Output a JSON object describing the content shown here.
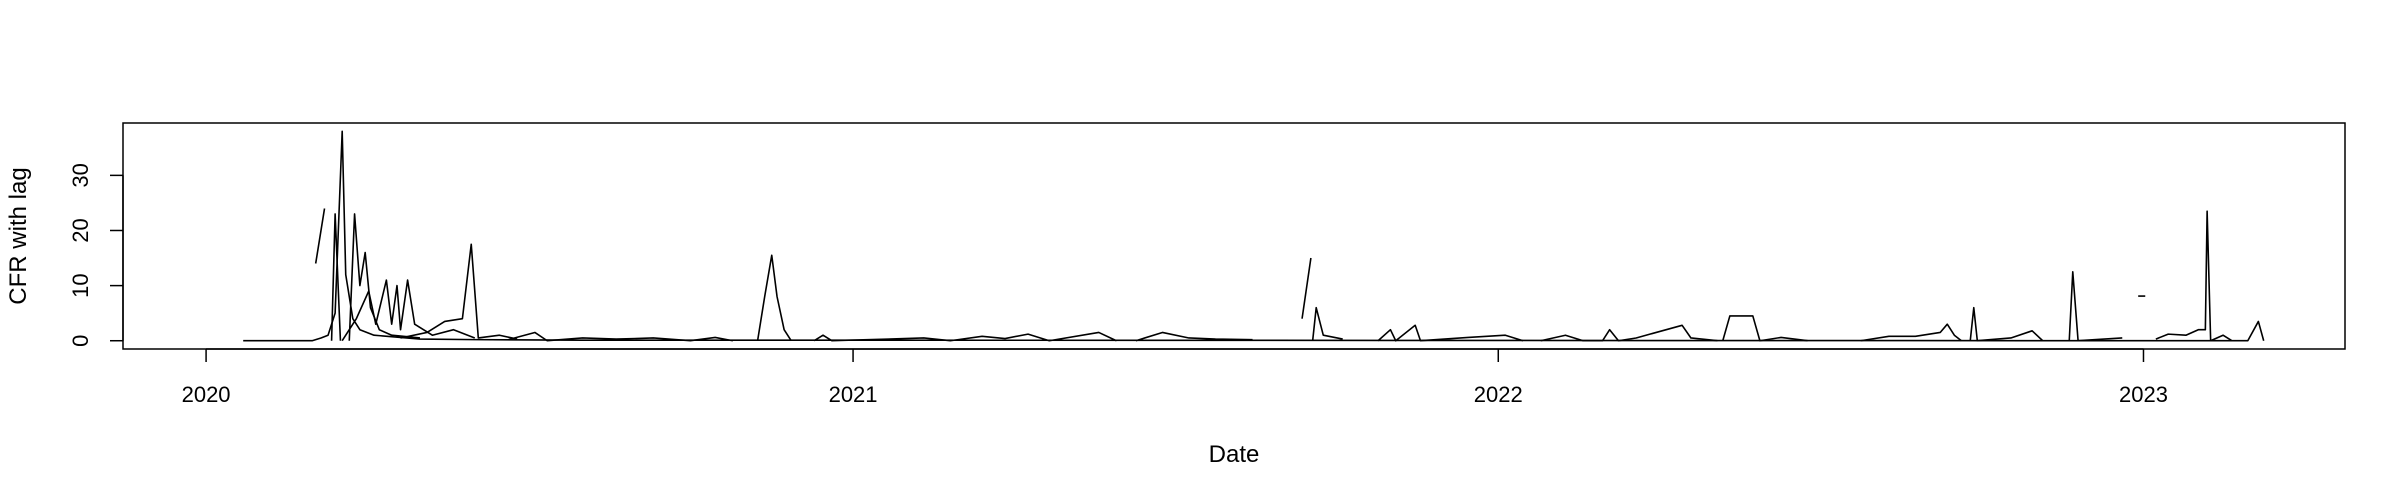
{
  "chart_data": {
    "type": "line",
    "title": "",
    "xlabel": "Date",
    "ylabel": "CFR with lag",
    "x_axis": {
      "scale": "date",
      "range": [
        "2019-11-15",
        "2023-04-25"
      ],
      "ticks": [
        {
          "value": "2020-01-01",
          "label": "2020"
        },
        {
          "value": "2021-01-01",
          "label": "2021"
        },
        {
          "value": "2022-01-01",
          "label": "2022"
        },
        {
          "value": "2023-01-01",
          "label": "2023"
        }
      ]
    },
    "y_axis": {
      "range": [
        -1.5,
        39.5
      ],
      "ticks": [
        {
          "value": 0,
          "label": "0"
        },
        {
          "value": 10,
          "label": "10"
        },
        {
          "value": 20,
          "label": "20"
        },
        {
          "value": 30,
          "label": "30"
        }
      ]
    },
    "grid": false,
    "legend": "none",
    "line_color": "#000000",
    "series": [
      {
        "points": [
          [
            "2020-01-22",
            0
          ],
          [
            "2020-03-01",
            0
          ],
          [
            "2020-03-06",
            0.5
          ],
          [
            "2020-03-10",
            1
          ],
          [
            "2020-03-14",
            5
          ],
          [
            "2020-03-18",
            38
          ],
          [
            "2020-03-20",
            12
          ],
          [
            "2020-03-24",
            4
          ],
          [
            "2020-03-28",
            2
          ],
          [
            "2020-04-05",
            1
          ],
          [
            "2020-04-20",
            0.6
          ],
          [
            "2020-05-01",
            0.3
          ],
          [
            "2020-06-01",
            0.2
          ],
          [
            "2020-08-01",
            0.1
          ],
          [
            "2021-01-01",
            0.1
          ],
          [
            "2022-01-01",
            0.05
          ],
          [
            "2023-02-20",
            0
          ]
        ]
      },
      {
        "points": [
          [
            "2020-03-03",
            14
          ],
          [
            "2020-03-08",
            24
          ]
        ]
      },
      {
        "points": [
          [
            "2020-03-12",
            0
          ],
          [
            "2020-03-14",
            23
          ],
          [
            "2020-03-17",
            0
          ]
        ]
      },
      {
        "points": [
          [
            "2020-03-22",
            0
          ],
          [
            "2020-03-25",
            23
          ],
          [
            "2020-03-28",
            10
          ],
          [
            "2020-03-31",
            16
          ],
          [
            "2020-04-03",
            6
          ],
          [
            "2020-04-08",
            2
          ],
          [
            "2020-04-15",
            1
          ],
          [
            "2020-05-01",
            0.5
          ]
        ]
      },
      {
        "points": [
          [
            "2020-03-18",
            0
          ],
          [
            "2020-03-26",
            4
          ],
          [
            "2020-04-02",
            9
          ],
          [
            "2020-04-06",
            3
          ],
          [
            "2020-04-12",
            11
          ],
          [
            "2020-04-15",
            3
          ],
          [
            "2020-04-18",
            10
          ],
          [
            "2020-04-20",
            2
          ],
          [
            "2020-04-24",
            11
          ],
          [
            "2020-04-28",
            3
          ],
          [
            "2020-05-08",
            1
          ],
          [
            "2020-05-20",
            2
          ],
          [
            "2020-06-01",
            0.5
          ]
        ]
      },
      {
        "points": [
          [
            "2020-04-20",
            0.5
          ],
          [
            "2020-05-05",
            1.5
          ],
          [
            "2020-05-15",
            3.5
          ],
          [
            "2020-05-25",
            4
          ],
          [
            "2020-05-30",
            17.5
          ],
          [
            "2020-06-03",
            0.5
          ],
          [
            "2020-06-15",
            1
          ],
          [
            "2020-06-25",
            0.3
          ]
        ]
      },
      {
        "points": [
          [
            "2020-06-20",
            0.2
          ],
          [
            "2020-07-05",
            1.5
          ],
          [
            "2020-07-12",
            0
          ],
          [
            "2020-08-01",
            0.5
          ],
          [
            "2020-08-20",
            0.3
          ],
          [
            "2020-09-10",
            0.5
          ],
          [
            "2020-10-01",
            0
          ],
          [
            "2020-10-15",
            0.6
          ],
          [
            "2020-10-25",
            0
          ]
        ]
      },
      {
        "points": [
          [
            "2020-11-08",
            0
          ],
          [
            "2020-11-12",
            8
          ],
          [
            "2020-11-16",
            15.5
          ],
          [
            "2020-11-19",
            8
          ],
          [
            "2020-11-23",
            2
          ],
          [
            "2020-11-27",
            0
          ]
        ]
      },
      {
        "points": [
          [
            "2020-12-10",
            0
          ],
          [
            "2020-12-15",
            1
          ],
          [
            "2020-12-20",
            0
          ],
          [
            "2021-02-10",
            0.5
          ],
          [
            "2021-02-25",
            0
          ],
          [
            "2021-03-15",
            0.8
          ],
          [
            "2021-03-28",
            0.4
          ],
          [
            "2021-04-10",
            1.2
          ],
          [
            "2021-04-22",
            0
          ],
          [
            "2021-05-20",
            1.5
          ],
          [
            "2021-05-30",
            0
          ]
        ]
      },
      {
        "points": [
          [
            "2021-06-10",
            0
          ],
          [
            "2021-06-25",
            1.5
          ],
          [
            "2021-07-10",
            0.5
          ],
          [
            "2021-07-25",
            0.3
          ],
          [
            "2021-08-15",
            0.2
          ]
        ]
      },
      {
        "points": [
          [
            "2021-09-12",
            4
          ],
          [
            "2021-09-17",
            15
          ]
        ]
      },
      {
        "points": [
          [
            "2021-09-18",
            0
          ],
          [
            "2021-09-20",
            6
          ],
          [
            "2021-09-24",
            1
          ],
          [
            "2021-10-05",
            0.3
          ]
        ]
      },
      {
        "points": [
          [
            "2021-10-25",
            0
          ],
          [
            "2021-11-01",
            2
          ],
          [
            "2021-11-04",
            0
          ],
          [
            "2021-11-15",
            2.8
          ],
          [
            "2021-11-18",
            0
          ],
          [
            "2021-12-15",
            0.6
          ],
          [
            "2022-01-05",
            1
          ],
          [
            "2022-01-15",
            0
          ]
        ]
      },
      {
        "points": [
          [
            "2022-01-25",
            0
          ],
          [
            "2022-02-08",
            1
          ],
          [
            "2022-02-18",
            0
          ],
          [
            "2022-03-01",
            0
          ],
          [
            "2022-03-05",
            2
          ],
          [
            "2022-03-10",
            0
          ],
          [
            "2022-03-20",
            0.5
          ],
          [
            "2022-04-15",
            2.8
          ],
          [
            "2022-04-20",
            0.5
          ],
          [
            "2022-05-05",
            0
          ]
        ]
      },
      {
        "points": [
          [
            "2022-05-08",
            0
          ],
          [
            "2022-05-12",
            4.5
          ],
          [
            "2022-05-25",
            4.5
          ],
          [
            "2022-05-29",
            0
          ],
          [
            "2022-06-10",
            0.6
          ],
          [
            "2022-06-25",
            0
          ]
        ]
      },
      {
        "points": [
          [
            "2022-07-25",
            0
          ],
          [
            "2022-08-10",
            0.8
          ],
          [
            "2022-08-25",
            0.8
          ],
          [
            "2022-09-08",
            1.5
          ],
          [
            "2022-09-12",
            3
          ],
          [
            "2022-09-16",
            1
          ],
          [
            "2022-09-20",
            0
          ]
        ]
      },
      {
        "points": [
          [
            "2022-09-25",
            0
          ],
          [
            "2022-09-27",
            6
          ],
          [
            "2022-09-29",
            0
          ],
          [
            "2022-10-18",
            0.5
          ],
          [
            "2022-10-30",
            1.8
          ],
          [
            "2022-11-05",
            0
          ]
        ]
      },
      {
        "points": [
          [
            "2022-11-20",
            0
          ],
          [
            "2022-11-22",
            12.5
          ],
          [
            "2022-11-25",
            0
          ],
          [
            "2022-12-20",
            0.5
          ]
        ]
      },
      {
        "points": [
          [
            "2022-12-29",
            8.1
          ],
          [
            "2023-01-02",
            8.1
          ]
        ]
      },
      {
        "points": [
          [
            "2023-01-08",
            0.3
          ],
          [
            "2023-01-15",
            1.2
          ],
          [
            "2023-01-25",
            1
          ],
          [
            "2023-02-01",
            2
          ],
          [
            "2023-02-05",
            2
          ],
          [
            "2023-02-06",
            23.5
          ],
          [
            "2023-02-08",
            0
          ],
          [
            "2023-02-15",
            1
          ],
          [
            "2023-02-20",
            0
          ],
          [
            "2023-03-01",
            0
          ],
          [
            "2023-03-07",
            3.5
          ],
          [
            "2023-03-10",
            0
          ]
        ]
      }
    ]
  }
}
